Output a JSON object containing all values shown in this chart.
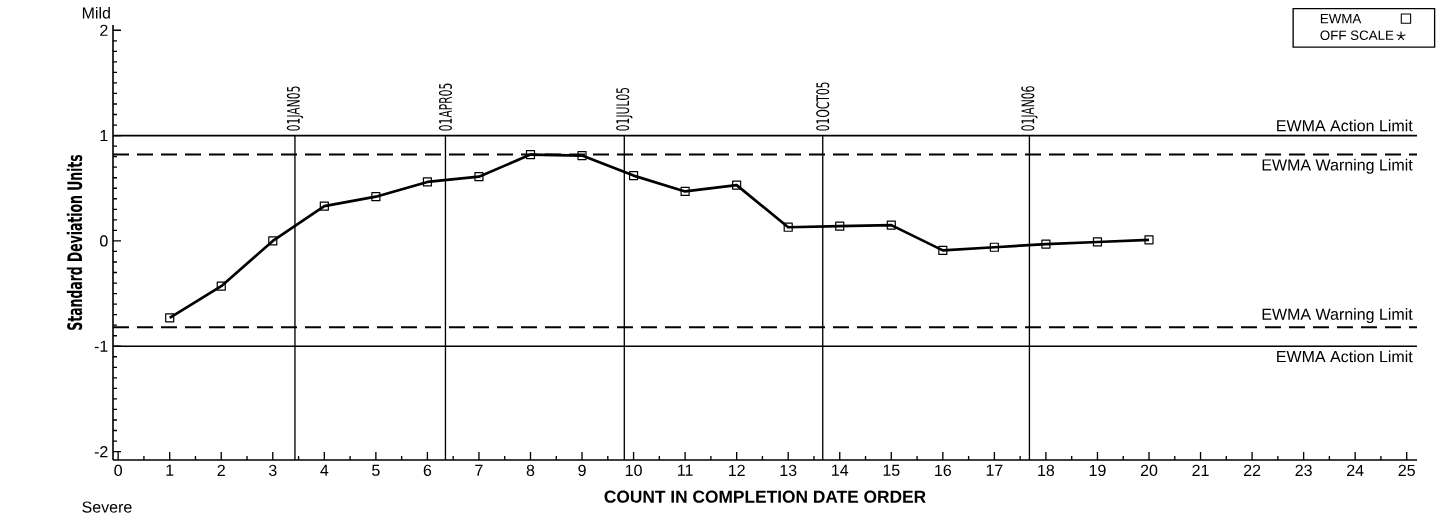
{
  "chart_data": {
    "type": "line",
    "xlabel": "COUNT IN COMPLETION DATE ORDER",
    "ylabel": "Standard Deviation Units",
    "x": [
      1,
      2,
      3,
      4,
      5,
      6,
      7,
      8,
      9,
      10,
      11,
      12,
      13,
      14,
      15,
      16,
      17,
      18,
      19,
      20
    ],
    "series": [
      {
        "name": "EWMA",
        "color": "#000000",
        "marker": "square",
        "values": [
          -0.73,
          -0.43,
          0.0,
          0.33,
          0.42,
          0.56,
          0.61,
          0.82,
          0.81,
          0.62,
          0.47,
          0.53,
          0.13,
          0.14,
          0.15,
          -0.09,
          -0.06,
          -0.03,
          -0.01,
          0.01
        ]
      },
      {
        "name": "OFF SCALE",
        "color": "#000000",
        "marker": "star",
        "values": [
          null,
          null,
          null,
          null,
          null,
          null,
          null,
          null,
          null,
          null,
          null,
          null,
          null,
          null,
          null,
          null,
          null,
          null,
          null,
          null
        ]
      }
    ],
    "xlim": [
      -0.1,
      25.2
    ],
    "ylim": [
      -2.08,
      2.05
    ],
    "xticks": [
      0,
      1,
      2,
      3,
      4,
      5,
      6,
      7,
      8,
      9,
      10,
      11,
      12,
      13,
      14,
      15,
      16,
      17,
      18,
      19,
      20,
      21,
      22,
      23,
      24,
      25
    ],
    "yticks": [
      -2,
      -1,
      0,
      1,
      2
    ],
    "ref_lines": [
      {
        "axis": "y",
        "value": 1,
        "label": "EWMA Action Limit",
        "line_style": "solid"
      },
      {
        "axis": "y",
        "value": 0.82,
        "label": "EWMA Warning Limit",
        "line_style": "dashed"
      },
      {
        "axis": "y",
        "value": -0.82,
        "label": "EWMA Warning Limit",
        "line_style": "dashed"
      },
      {
        "axis": "y",
        "value": -1,
        "label": "EWMA Action Limit",
        "line_style": "solid"
      },
      {
        "axis": "x",
        "value": 3.43,
        "label": "01JAN05",
        "line_style": "solid"
      },
      {
        "axis": "x",
        "value": 6.35,
        "label": "01APR05",
        "line_style": "solid"
      },
      {
        "axis": "x",
        "value": 9.82,
        "label": "01JUL05",
        "line_style": "solid"
      },
      {
        "axis": "x",
        "value": 13.67,
        "label": "01OCT05",
        "line_style": "solid"
      },
      {
        "axis": "x",
        "value": 17.68,
        "label": "01JAN06",
        "line_style": "solid"
      }
    ],
    "annotations": [
      "Mild",
      "Severe"
    ],
    "legend": "top right",
    "grid": false,
    "line_style": "solid"
  }
}
